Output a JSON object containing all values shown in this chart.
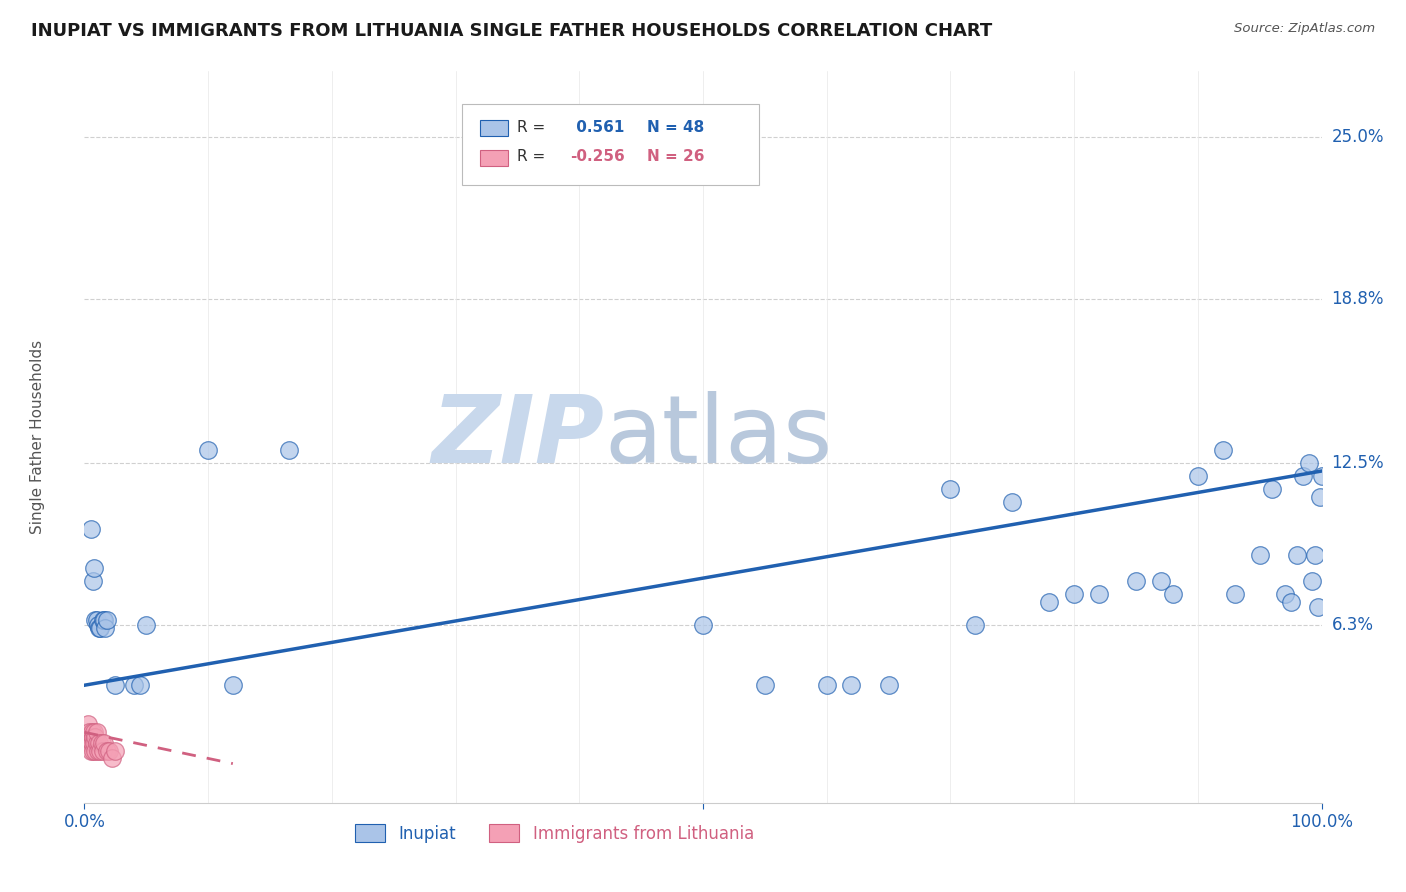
{
  "title": "INUPIAT VS IMMIGRANTS FROM LITHUANIA SINGLE FATHER HOUSEHOLDS CORRELATION CHART",
  "source": "Source: ZipAtlas.com",
  "ylabel": "Single Father Households",
  "ytick_labels": [
    "6.3%",
    "12.5%",
    "18.8%",
    "25.0%"
  ],
  "ytick_values": [
    0.063,
    0.125,
    0.188,
    0.25
  ],
  "xlim": [
    0.0,
    1.0
  ],
  "ylim": [
    -0.005,
    0.275
  ],
  "legend_label1": "Inupiat",
  "legend_label2": "Immigrants from Lithuania",
  "r1": 0.561,
  "n1": 48,
  "r2": -0.256,
  "n2": 26,
  "inupiat_x": [
    0.005,
    0.007,
    0.008,
    0.009,
    0.01,
    0.011,
    0.012,
    0.013,
    0.015,
    0.016,
    0.017,
    0.018,
    0.025,
    0.04,
    0.045,
    0.05,
    0.1,
    0.12,
    0.165,
    0.5,
    0.55,
    0.6,
    0.62,
    0.65,
    0.7,
    0.72,
    0.75,
    0.78,
    0.8,
    0.82,
    0.85,
    0.87,
    0.88,
    0.9,
    0.92,
    0.93,
    0.95,
    0.96,
    0.97,
    0.975,
    0.98,
    0.985,
    0.99,
    0.992,
    0.995,
    0.997,
    0.999,
    1.0
  ],
  "inupiat_y": [
    0.1,
    0.08,
    0.085,
    0.065,
    0.065,
    0.063,
    0.062,
    0.062,
    0.065,
    0.065,
    0.062,
    0.065,
    0.04,
    0.04,
    0.04,
    0.063,
    0.13,
    0.04,
    0.13,
    0.063,
    0.04,
    0.04,
    0.04,
    0.04,
    0.115,
    0.063,
    0.11,
    0.072,
    0.075,
    0.075,
    0.08,
    0.08,
    0.075,
    0.12,
    0.13,
    0.075,
    0.09,
    0.115,
    0.075,
    0.072,
    0.09,
    0.12,
    0.125,
    0.08,
    0.09,
    0.07,
    0.112,
    0.12
  ],
  "lithuania_x": [
    0.002,
    0.003,
    0.004,
    0.004,
    0.005,
    0.005,
    0.006,
    0.006,
    0.007,
    0.007,
    0.008,
    0.008,
    0.009,
    0.009,
    0.01,
    0.01,
    0.011,
    0.012,
    0.013,
    0.014,
    0.015,
    0.016,
    0.018,
    0.02,
    0.022,
    0.025
  ],
  "lithuania_y": [
    0.02,
    0.025,
    0.018,
    0.022,
    0.015,
    0.02,
    0.018,
    0.022,
    0.015,
    0.02,
    0.018,
    0.022,
    0.015,
    0.02,
    0.018,
    0.022,
    0.015,
    0.018,
    0.015,
    0.018,
    0.015,
    0.018,
    0.015,
    0.015,
    0.012,
    0.015
  ],
  "blue_color": "#aac4e8",
  "pink_color": "#f4a0b5",
  "line_blue": "#2060b0",
  "line_pink": "#d06080",
  "background_color": "#ffffff",
  "grid_color": "#d0d0d0",
  "watermark_zip": "ZIP",
  "watermark_atlas": "atlas",
  "watermark_color_zip": "#c8d8ec",
  "watermark_color_atlas": "#b8c8dc"
}
